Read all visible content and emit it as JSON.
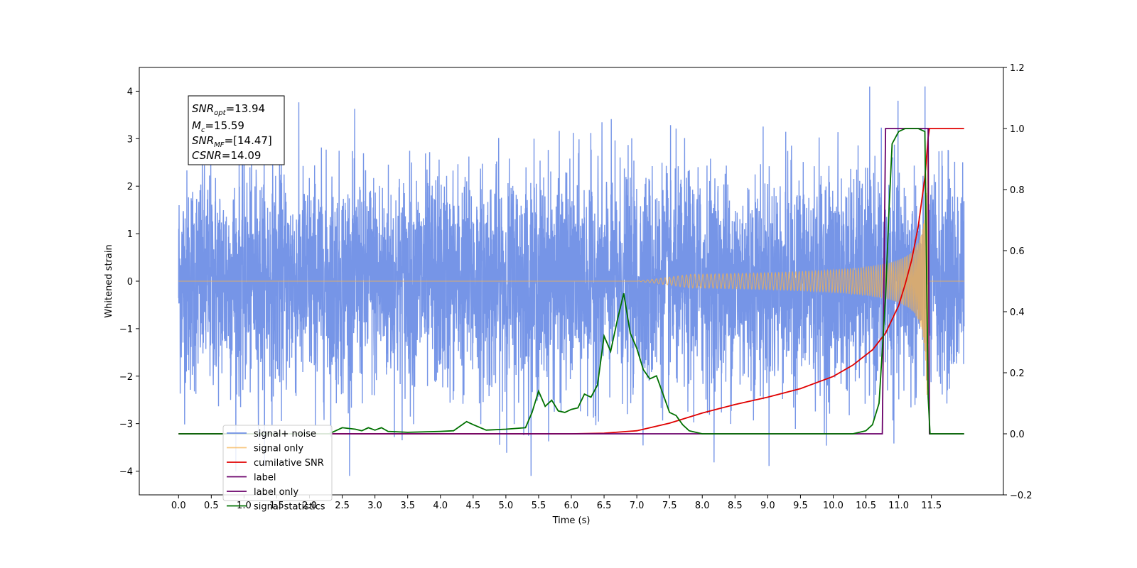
{
  "chart_data": {
    "type": "line",
    "xlabel": "Time (s)",
    "ylabel": "Whitened strain",
    "xlim": [
      -0.6,
      12.6
    ],
    "ylim": [
      -4.5,
      4.5
    ],
    "y2lim": [
      -0.2,
      1.2
    ],
    "x_ticks": [
      "0.0",
      "0.5",
      "1.0",
      "1.5",
      "2.0",
      "2.5",
      "3.0",
      "3.5",
      "4.0",
      "4.5",
      "5.0",
      "5.5",
      "6.0",
      "6.5",
      "7.0",
      "7.5",
      "8.0",
      "8.5",
      "9.0",
      "9.5",
      "10.0",
      "10.5",
      "11.0",
      "11.5"
    ],
    "y_ticks": [
      "−4",
      "−3",
      "−2",
      "−1",
      "0",
      "1",
      "2",
      "3",
      "4"
    ],
    "y2_ticks": [
      "−0.2",
      "0.0",
      "0.2",
      "0.4",
      "0.6",
      "0.8",
      "1.0",
      "1.2"
    ],
    "annotation": {
      "snr_opt": "=13.94",
      "mc": "=15.59",
      "snr_mf": "=[14.47]",
      "csnr": "=14.09"
    },
    "series": [
      {
        "name": "signal+ noise",
        "color": "#6f8fe6",
        "axis": "left",
        "description": "whitened noisy strain, approx. Gaussian with sigma ~1.15 sampled over 0.0-12.0 s"
      },
      {
        "name": "signal only",
        "color": "#f5b14c",
        "axis": "left",
        "chirp": {
          "t_start": 7.0,
          "t_merger": 11.45,
          "amp_end": 3.1
        }
      },
      {
        "name": "cumilative SNR",
        "color": "#e00000",
        "axis": "right",
        "x": [
          0.0,
          6.0,
          6.5,
          7.0,
          7.5,
          8.0,
          8.5,
          9.0,
          9.5,
          10.0,
          10.3,
          10.6,
          10.8,
          11.0,
          11.1,
          11.2,
          11.3,
          11.4,
          11.45,
          11.47,
          12.0
        ],
        "y": [
          0.0,
          0.0,
          0.002,
          0.01,
          0.035,
          0.068,
          0.096,
          0.12,
          0.148,
          0.188,
          0.225,
          0.275,
          0.33,
          0.42,
          0.49,
          0.57,
          0.68,
          0.84,
          0.97,
          1.0,
          1.0
        ]
      },
      {
        "name": "label",
        "color": "#6a006a",
        "axis": "right",
        "x": [
          0.0,
          10.75,
          10.8,
          11.45,
          11.47,
          12.0
        ],
        "y": [
          0.0,
          0.0,
          1.0,
          1.0,
          0.0,
          0.0
        ]
      },
      {
        "name": "label only",
        "color": "#6a006a",
        "axis": "right",
        "hidden": true
      },
      {
        "name": "signal statistics",
        "color": "#007000",
        "axis": "right",
        "x": [
          0.0,
          2.3,
          2.4,
          2.5,
          2.7,
          2.8,
          2.9,
          3.0,
          3.1,
          3.2,
          3.5,
          4.0,
          4.2,
          4.3,
          4.4,
          4.5,
          4.7,
          5.0,
          5.3,
          5.4,
          5.5,
          5.6,
          5.7,
          5.8,
          5.9,
          6.0,
          6.1,
          6.2,
          6.3,
          6.4,
          6.5,
          6.6,
          6.7,
          6.8,
          6.9,
          7.0,
          7.1,
          7.2,
          7.3,
          7.4,
          7.5,
          7.6,
          7.7,
          7.8,
          8.0,
          10.0,
          10.3,
          10.4,
          10.5,
          10.6,
          10.7,
          10.8,
          10.85,
          10.9,
          11.0,
          11.1,
          11.3,
          11.4,
          11.45,
          11.48,
          12.0
        ],
        "y": [
          0.0,
          0.0,
          0.01,
          0.02,
          0.015,
          0.01,
          0.02,
          0.012,
          0.02,
          0.008,
          0.005,
          0.008,
          0.01,
          0.025,
          0.04,
          0.03,
          0.012,
          0.015,
          0.02,
          0.07,
          0.14,
          0.09,
          0.11,
          0.075,
          0.07,
          0.08,
          0.085,
          0.13,
          0.12,
          0.16,
          0.32,
          0.27,
          0.37,
          0.46,
          0.33,
          0.28,
          0.21,
          0.18,
          0.19,
          0.13,
          0.07,
          0.06,
          0.03,
          0.01,
          0.0,
          0.0,
          0.0,
          0.005,
          0.01,
          0.03,
          0.1,
          0.45,
          0.72,
          0.95,
          0.99,
          1.0,
          1.0,
          0.99,
          0.12,
          0.0,
          0.0
        ]
      }
    ],
    "legend": {
      "placement": "lower-left",
      "entries": [
        "signal+ noise",
        "signal only",
        "cumilative SNR",
        "label",
        "label only",
        "signal statistics"
      ]
    }
  }
}
